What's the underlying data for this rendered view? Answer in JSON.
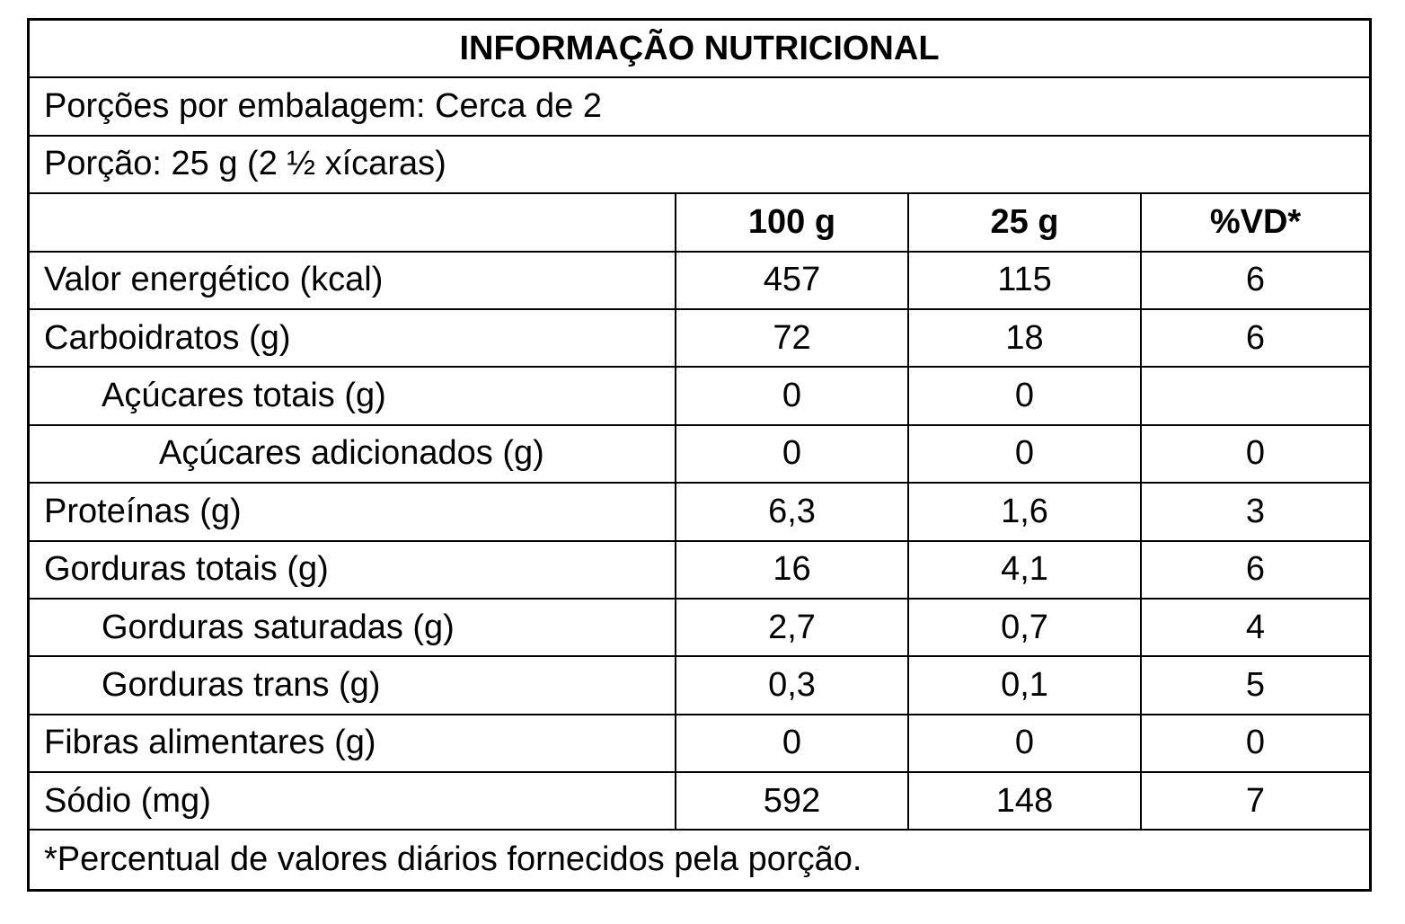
{
  "title": "INFORMAÇÃO NUTRICIONAL",
  "servings_per_package": "Porções por embalagem: Cerca de 2",
  "serving_size": "Porção: 25 g (2 ½ xícaras)",
  "columns": {
    "name": "",
    "per_100g": "100 g",
    "per_serving": "25 g",
    "daily_value": "%VD*"
  },
  "rows": [
    {
      "name": "Valor energético (kcal)",
      "per_100g": "457",
      "per_serving": "115",
      "dv": "6",
      "indent": 0
    },
    {
      "name": "Carboidratos (g)",
      "per_100g": "72",
      "per_serving": "18",
      "dv": "6",
      "indent": 0
    },
    {
      "name": "Açúcares totais (g)",
      "per_100g": "0",
      "per_serving": "0",
      "dv": "",
      "indent": 1
    },
    {
      "name": "Açúcares adicionados (g)",
      "per_100g": "0",
      "per_serving": "0",
      "dv": "0",
      "indent": 2
    },
    {
      "name": "Proteínas (g)",
      "per_100g": "6,3",
      "per_serving": "1,6",
      "dv": "3",
      "indent": 0
    },
    {
      "name": "Gorduras totais (g)",
      "per_100g": "16",
      "per_serving": "4,1",
      "dv": "6",
      "indent": 0
    },
    {
      "name": "Gorduras saturadas (g)",
      "per_100g": "2,7",
      "per_serving": "0,7",
      "dv": "4",
      "indent": 1
    },
    {
      "name": "Gorduras trans (g)",
      "per_100g": "0,3",
      "per_serving": "0,1",
      "dv": "5",
      "indent": 1
    },
    {
      "name": "Fibras alimentares (g)",
      "per_100g": "0",
      "per_serving": "0",
      "dv": "0",
      "indent": 0
    },
    {
      "name": "Sódio (mg)",
      "per_100g": "592",
      "per_serving": "148",
      "dv": "7",
      "indent": 0
    }
  ],
  "footnote": "*Percentual de valores diários fornecidos pela porção."
}
